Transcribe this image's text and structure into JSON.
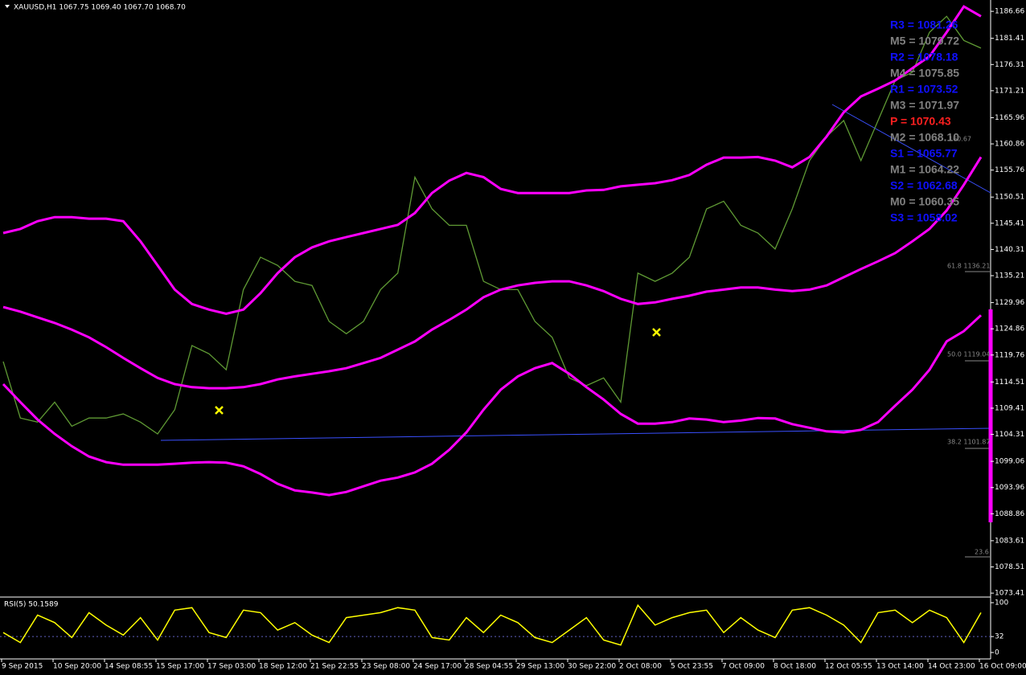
{
  "chart_data": [
    {
      "type": "line",
      "title": "XAUUSD,H1  1067.75 1069.40 1067.70 1068.70",
      "categories": [
        "9 Sep 2015",
        null,
        null,
        "10 Sep 20:00",
        null,
        null,
        "14 Sep 08:55",
        null,
        null,
        "15 Sep 17:00",
        null,
        null,
        "17 Sep 03:00",
        null,
        null,
        "18 Sep 12:00",
        null,
        null,
        "21 Sep 22:55",
        null,
        null,
        "23 Sep 08:00",
        null,
        null,
        "24 Sep 17:00",
        null,
        null,
        "28 Sep 04:55",
        null,
        null,
        "29 Sep 13:00",
        null,
        null,
        "30 Sep 22:00",
        null,
        null,
        "2 Oct 08:00",
        null,
        null,
        "5 Oct 23:55",
        null,
        null,
        "7 Oct 09:00",
        null,
        null,
        "8 Oct 18:00",
        null,
        null,
        "12 Oct 05:55",
        null,
        null,
        "13 Oct 14:00",
        null,
        null,
        "14 Oct 23:00",
        null,
        null,
        "16 Oct 09:00"
      ],
      "series": [
        {
          "color": "#5f9a34",
          "values": [
            1118.5,
            1107.5,
            1106.7,
            1110.6,
            1105.9,
            1107.5,
            1107.5,
            1108.3,
            1106.7,
            1104.4,
            1109.1,
            1121.6,
            1120.0,
            1116.9,
            1132.5,
            1138.8,
            1137.2,
            1134.1,
            1133.3,
            1126.3,
            1123.9,
            1126.3,
            1132.5,
            1135.7,
            1154.4,
            1148.2,
            1145.0,
            1145.0,
            1134.1,
            1132.5,
            1132.5,
            1126.3,
            1123.2,
            1115.3,
            1113.8,
            1115.3,
            1110.6,
            1135.7,
            1134.1,
            1135.7,
            1138.8,
            1148.2,
            1149.7,
            1145.0,
            1143.5,
            1140.4,
            1148.2,
            1157.6,
            1162.3,
            1165.4,
            1157.6,
            1165.4,
            1173.2,
            1174.8,
            1182.6,
            1185.7,
            1181.0,
            1179.5
          ]
        },
        {
          "color": "#ff00ff",
          "values": [
            1143.5,
            1144.3,
            1145.8,
            1146.6,
            1146.6,
            1146.3,
            1146.3,
            1145.8,
            1141.9,
            1137.2,
            1132.5,
            1129.7,
            1128.6,
            1127.8,
            1128.6,
            1131.8,
            1135.7,
            1138.8,
            1140.7,
            1141.9,
            1142.7,
            1143.5,
            1144.3,
            1145.1,
            1147.4,
            1151.3,
            1153.7,
            1155.2,
            1154.4,
            1152.1,
            1151.3,
            1151.3,
            1151.3,
            1151.3,
            1151.8,
            1151.9,
            1152.6,
            1152.9,
            1153.2,
            1153.8,
            1154.8,
            1156.8,
            1158.2,
            1158.2,
            1158.3,
            1157.6,
            1156.3,
            1158.3,
            1162.3,
            1167.0,
            1170.1,
            1171.6,
            1173.2,
            1175.6,
            1177.9,
            1182.6,
            1187.6,
            1185.7
          ]
        },
        {
          "color": "#ff00ff",
          "values": [
            1129.1,
            1128.2,
            1127.1,
            1126.0,
            1124.7,
            1123.2,
            1121.3,
            1119.2,
            1117.2,
            1115.3,
            1114.1,
            1113.5,
            1113.3,
            1113.3,
            1113.5,
            1114.1,
            1115.0,
            1115.6,
            1116.1,
            1116.6,
            1117.2,
            1118.2,
            1119.2,
            1120.8,
            1122.4,
            1124.7,
            1126.6,
            1128.6,
            1131.0,
            1132.5,
            1133.3,
            1133.8,
            1134.1,
            1134.1,
            1133.3,
            1132.2,
            1130.7,
            1129.7,
            1130.0,
            1130.7,
            1131.3,
            1132.1,
            1132.5,
            1132.9,
            1132.9,
            1132.5,
            1132.2,
            1132.5,
            1133.3,
            1134.9,
            1136.5,
            1138.0,
            1139.6,
            1141.9,
            1144.3,
            1147.9,
            1152.9,
            1158.3
          ]
        },
        {
          "color": "#ff00ff",
          "values": [
            1114.1,
            1110.6,
            1107.2,
            1104.4,
            1102.0,
            1100.0,
            1098.9,
            1098.4,
            1098.4,
            1098.4,
            1098.6,
            1098.8,
            1098.9,
            1098.8,
            1098.1,
            1096.6,
            1094.7,
            1093.4,
            1093.0,
            1092.5,
            1093.1,
            1094.2,
            1095.3,
            1095.9,
            1096.9,
            1098.6,
            1101.3,
            1104.7,
            1109.1,
            1113.0,
            1115.6,
            1117.2,
            1118.2,
            1116.1,
            1113.5,
            1111.1,
            1108.3,
            1106.4,
            1106.4,
            1106.7,
            1107.4,
            1107.2,
            1106.7,
            1107.0,
            1107.5,
            1107.4,
            1106.3,
            1105.6,
            1104.9,
            1104.7,
            1105.2,
            1106.7,
            1109.9,
            1113.0,
            1116.9,
            1122.4,
            1124.4,
            1127.5
          ]
        }
      ],
      "ylim": [
        1072.8,
        1188.4
      ],
      "yticks": [
        1186.66,
        1181.41,
        1176.31,
        1171.21,
        1165.96,
        1160.86,
        1155.76,
        1150.51,
        1145.41,
        1140.31,
        1135.21,
        1129.96,
        1124.86,
        1119.76,
        1114.51,
        1109.41,
        1104.31,
        1099.06,
        1093.96,
        1088.86,
        1083.61,
        1078.51,
        1073.41
      ],
      "pivots": [
        {
          "label": "R3 = 1081.26",
          "color": "#1010ff"
        },
        {
          "label": "M5 = 1079.72",
          "color": "#808080"
        },
        {
          "label": "R2 = 1078.18",
          "color": "#1010ff"
        },
        {
          "label": "M4 = 1075.85",
          "color": "#808080"
        },
        {
          "label": "R1 = 1073.52",
          "color": "#1010ff"
        },
        {
          "label": "M3 = 1071.97",
          "color": "#808080"
        },
        {
          "label": "P = 1070.43",
          "color": "#ff2020"
        },
        {
          "label": "M2 = 1068.10",
          "color": "#808080"
        },
        {
          "label": "S1 = 1065.77",
          "color": "#1010ff"
        },
        {
          "label": "M1 = 1064.22",
          "color": "#808080"
        },
        {
          "label": "S2 = 1062.68",
          "color": "#1010ff"
        },
        {
          "label": "M0 = 1060.35",
          "color": "#808080"
        },
        {
          "label": "S3 = 1058.02",
          "color": "#1010ff"
        }
      ],
      "fib_labels": [
        "160.67",
        "61.8  1136.21",
        "50.0  1119.04",
        "38.2  1101.87",
        "23.6"
      ]
    },
    {
      "type": "line",
      "title": "RSI(5) 50.1589",
      "color": "#ffff00",
      "values": [
        40,
        20,
        75,
        60,
        30,
        80,
        55,
        35,
        70,
        25,
        85,
        90,
        40,
        30,
        85,
        80,
        45,
        60,
        35,
        20,
        70,
        75,
        80,
        90,
        85,
        30,
        25,
        70,
        40,
        75,
        60,
        30,
        20,
        45,
        70,
        25,
        15,
        95,
        55,
        70,
        80,
        85,
        40,
        70,
        45,
        30,
        85,
        90,
        75,
        55,
        20,
        80,
        85,
        60,
        85,
        70,
        20,
        80
      ],
      "ylim": [
        0,
        100
      ],
      "yticks": [
        0,
        32,
        100
      ]
    }
  ]
}
